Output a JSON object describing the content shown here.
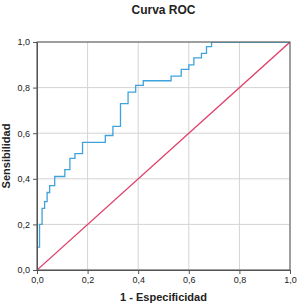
{
  "chart_data": {
    "type": "line",
    "title": "Curva ROC",
    "x_label": "1 - Especificidad",
    "y_label": "Sensibilidad",
    "xlim": [
      0,
      1
    ],
    "ylim": [
      0,
      1
    ],
    "xticks": [
      {
        "value": 0,
        "label": "0,0"
      },
      {
        "value": 0.2,
        "label": "0,2"
      },
      {
        "value": 0.4,
        "label": "0,4"
      },
      {
        "value": 0.6,
        "label": "0,6"
      },
      {
        "value": 0.8,
        "label": "0,8"
      },
      {
        "value": 1,
        "label": "1,0"
      }
    ],
    "yticks": [
      {
        "value": 0,
        "label": "0,0"
      },
      {
        "value": 0.2,
        "label": "0,2"
      },
      {
        "value": 0.4,
        "label": "0,4"
      },
      {
        "value": 0.6,
        "label": "0,6"
      },
      {
        "value": 0.8,
        "label": "0,8"
      },
      {
        "value": 1,
        "label": "1,0"
      }
    ],
    "grid": true,
    "series": [
      {
        "color": "#3ea3dc",
        "x": [
          0,
          0,
          0.01,
          0.01,
          0.02,
          0.02,
          0.03,
          0.03,
          0.04,
          0.04,
          0.05,
          0.05,
          0.07,
          0.07,
          0.11,
          0.11,
          0.13,
          0.13,
          0.15,
          0.15,
          0.18,
          0.18,
          0.27,
          0.27,
          0.3,
          0.3,
          0.33,
          0.33,
          0.36,
          0.36,
          0.39,
          0.39,
          0.42,
          0.42,
          0.53,
          0.53,
          0.57,
          0.57,
          0.6,
          0.6,
          0.62,
          0.62,
          0.65,
          0.65,
          0.67,
          0.67,
          0.69,
          0.69,
          1
        ],
        "values": [
          0,
          0.1,
          0.1,
          0.2,
          0.2,
          0.27,
          0.27,
          0.3,
          0.3,
          0.34,
          0.34,
          0.37,
          0.37,
          0.41,
          0.41,
          0.44,
          0.44,
          0.49,
          0.49,
          0.51,
          0.51,
          0.56,
          0.56,
          0.59,
          0.59,
          0.63,
          0.63,
          0.73,
          0.73,
          0.78,
          0.78,
          0.81,
          0.81,
          0.83,
          0.83,
          0.85,
          0.85,
          0.88,
          0.88,
          0.9,
          0.9,
          0.93,
          0.93,
          0.95,
          0.95,
          0.98,
          0.98,
          1,
          1
        ]
      },
      {
        "color": "#e0406a",
        "x": [
          0,
          1
        ],
        "values": [
          0,
          1
        ]
      }
    ]
  }
}
